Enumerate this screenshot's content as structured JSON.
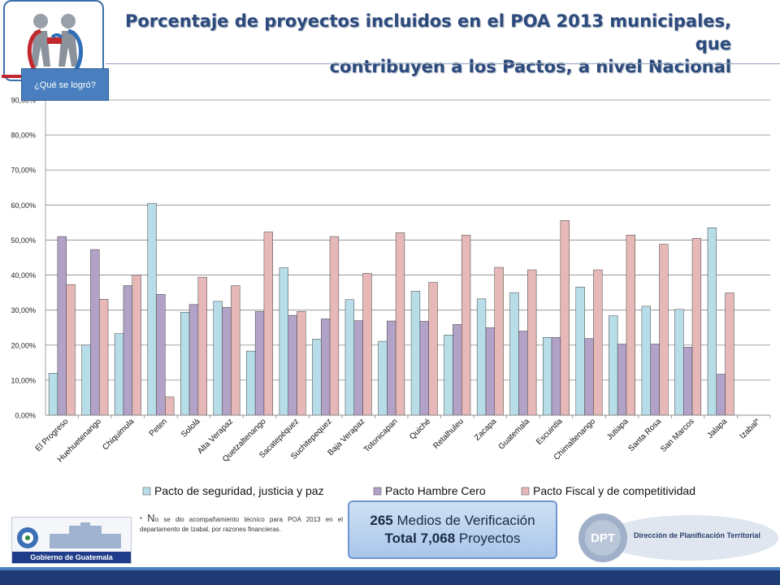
{
  "slide": {
    "title_line1": "Porcentaje de proyectos incluidos en el POA 2013 municipales, que",
    "title_line2": "contribuyen a los Pactos, a nivel Nacional",
    "badge": "¿Qué se logró?",
    "footnote_initial": "N",
    "footnote_prefix": "* ",
    "footnote_text": "o se dio acompañamiento técnico para POA 2013 en el departamento de Izabal, por razones financieras.",
    "stats_count": "265",
    "stats_count_label": "Medios de Verificación",
    "stats_total_label": "Total",
    "stats_total": "7,068",
    "stats_total_suffix": "Proyectos",
    "gov_logo_text": "Gobierno de Guatemala",
    "dpt_logo_abbr": "DPT",
    "dpt_logo_text": "Dirección de Planificación Territorial"
  },
  "chart_data": {
    "type": "bar",
    "categories": [
      "El Progreso",
      "Huehuetenango",
      "Chiquimula",
      "Peten",
      "Sololá",
      "Alta Verapaz",
      "Quetzaltenango",
      "Sacatepéquez",
      "Suchitepequez",
      "Baja Verapaz",
      "Totonicapan",
      "Quiché",
      "Retalhuleu",
      "Zacapa",
      "Guatemala",
      "Escuintla",
      "Chimaltenango",
      "Jutiapa",
      "Santa Rosa",
      "San Marcos",
      "Jalapa",
      "Izabal*"
    ],
    "series": [
      {
        "name": "Pacto de seguridad, justicia y paz",
        "color": "#b7dee8",
        "values": [
          12,
          20,
          23.3,
          60.5,
          29.4,
          32.5,
          18.3,
          42.1,
          21.7,
          33,
          21.1,
          35.4,
          22.9,
          33.2,
          35,
          22.2,
          36.6,
          28.4,
          31.1,
          30.2,
          53.5,
          0
        ]
      },
      {
        "name": "Pacto Hambre Cero",
        "color": "#b3a2c7",
        "values": [
          51,
          47.3,
          37,
          34.5,
          31.6,
          30.8,
          29.6,
          28.5,
          27.5,
          27,
          26.9,
          26.8,
          25.9,
          25,
          24,
          22.2,
          21.9,
          20.3,
          20.3,
          19.4,
          11.7,
          0
        ]
      },
      {
        "name": "Pacto Fiscal y de competitividad",
        "color": "#e6b9b8",
        "values": [
          37.3,
          33.1,
          40,
          5.2,
          39.4,
          37,
          52.3,
          29.6,
          51,
          40.5,
          52.1,
          37.9,
          51.4,
          42.2,
          41.5,
          55.6,
          41.5,
          51.4,
          48.8,
          50.5,
          34.9,
          0
        ]
      }
    ],
    "xlabel": "",
    "ylabel": "",
    "ylim": [
      0,
      90
    ],
    "yticks": [
      "0,00%",
      "10,00%",
      "20,00%",
      "30,00%",
      "40,00%",
      "50,00%",
      "60,00%",
      "70,00%",
      "80,00%",
      "90,00%"
    ],
    "grid": true,
    "legend": "bottom"
  }
}
